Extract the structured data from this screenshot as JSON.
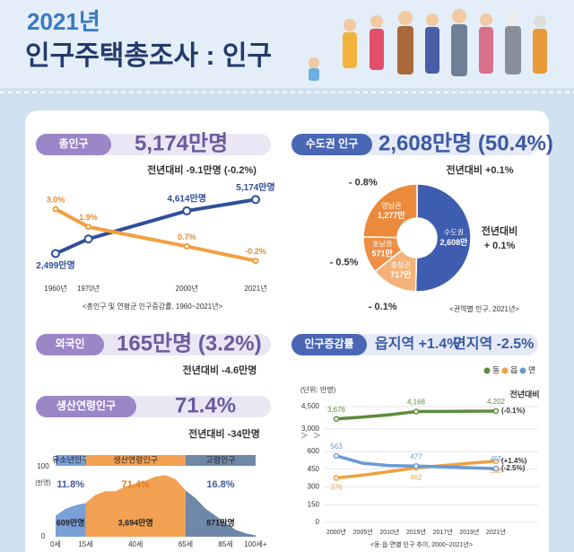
{
  "header": {
    "year": "2021년",
    "title": "인구주택총조사 : 인구"
  },
  "total": {
    "label": "총인구",
    "value": "5,174만명",
    "change": "전년대비 -9.1만명 (-0.2%)"
  },
  "capital": {
    "label": "수도권 인구",
    "value": "2,608만명 (50.4%)",
    "change": "전년대비 +0.1%"
  },
  "foreign": {
    "label": "외국인",
    "value": "165만명 (3.2%)",
    "change": "전년대비 -4.6만명"
  },
  "working_age": {
    "label": "생산연령인구",
    "value": "71.4%",
    "change": "전년대비 -34만명"
  },
  "urban_rural": {
    "label": "인구증감률",
    "items": [
      "읍지역 +1.4%",
      "면지역 -2.5%"
    ]
  },
  "chart_data": [
    {
      "type": "line",
      "caption": "<총인구 및 연평균 인구증감률, 1960~2021년>",
      "x": [
        1960,
        1970,
        2000,
        2021
      ],
      "xlim": [
        1960,
        2021
      ],
      "xticks": [
        {
          "value": 1960,
          "label": "1960년"
        },
        {
          "value": 1970,
          "label": "1970년"
        },
        {
          "value": 2000,
          "label": "2000년"
        },
        {
          "value": 2021,
          "label": "2021년"
        }
      ],
      "ylim": [
        1500,
        5500
      ],
      "y2lim": [
        -1,
        4
      ],
      "series": [
        {
          "color": "#2f4f9a",
          "values": [
            2499,
            3224,
            4614,
            5174
          ],
          "value_labels": [
            "2,499만명",
            null,
            "4,614만명",
            "5,174만명"
          ]
        },
        {
          "color": "#f0a040",
          "axis": "y2",
          "values": [
            3.0,
            1.9,
            0.7,
            -0.2
          ],
          "value_labels": [
            "3.0%",
            "1.9%",
            "0.7%",
            "-0.2%"
          ]
        }
      ]
    },
    {
      "type": "pie",
      "caption": "<권역별 인구, 2021년>",
      "categories": [
        "수도권",
        "충청권",
        "호남권",
        "영남권"
      ],
      "values": [
        2608,
        717,
        571,
        1277
      ],
      "value_labels": [
        "2,608만",
        "717만",
        "571만",
        "1,277만"
      ],
      "colors": [
        "#3f5db0",
        "#f4b27a",
        "#ee8f45",
        "#ec8a3c"
      ],
      "change_prefix": "전년대비",
      "changes": [
        "+ 0.1%",
        "- 0.1%",
        "- 0.5%",
        "- 0.8%"
      ]
    },
    {
      "type": "area",
      "y_unit": "(만명)",
      "x": [
        0,
        5,
        10,
        15,
        20,
        25,
        30,
        35,
        40,
        45,
        50,
        55,
        60,
        65,
        70,
        75,
        80,
        85,
        90,
        95,
        100
      ],
      "values": [
        30,
        40,
        45,
        48,
        60,
        65,
        65,
        72,
        76,
        80,
        86,
        88,
        82,
        66,
        55,
        40,
        30,
        20,
        10,
        5,
        2
      ],
      "xlim": [
        0,
        100
      ],
      "xticks": [
        {
          "value": 0,
          "label": "0세"
        },
        {
          "value": 15,
          "label": "15세"
        },
        {
          "value": 40,
          "label": "40세"
        },
        {
          "value": 65,
          "label": "65세"
        },
        {
          "value": 85,
          "label": "85세"
        },
        {
          "value": 100,
          "label": "100세+"
        }
      ],
      "ylim": [
        0,
        100
      ],
      "yticks": [
        0,
        100
      ],
      "group_edges": [
        0,
        15,
        65,
        100
      ],
      "groups": [
        {
          "name": "유소년인구",
          "share": "11.8%",
          "population": "609만명",
          "color": "#7aa0d8"
        },
        {
          "name": "생산연령인구",
          "share": "71.4%",
          "population": "3,694만명",
          "color": "#f2a052"
        },
        {
          "name": "고령인구",
          "share": "16.8%",
          "population": "871만명",
          "color": "#6f88a8"
        }
      ]
    },
    {
      "type": "line",
      "unit": "(단위: 만명)",
      "caption": "<동·읍·면별 인구 추이, 2000~2021년>",
      "legend": "top-right",
      "categories": [
        "2000년",
        "2005년",
        "2010년",
        "2015년",
        "2017년",
        "2019년",
        "2021년"
      ],
      "ylim": [
        0,
        600
      ],
      "yticks": [
        0,
        150,
        300,
        450,
        600
      ],
      "y2lim": [
        3000,
        4500
      ],
      "y2ticks": [
        {
          "value": 3000,
          "label": "3,000"
        },
        {
          "value": 4500,
          "label": "4,500"
        }
      ],
      "annotation": "전년대비",
      "series": [
        {
          "name": "동",
          "color": "#5e8c3c",
          "axis": "y2",
          "values": [
            3676,
            3800,
            3950,
            4168,
            4180,
            4195,
            4202
          ],
          "value_labels": [
            "3,676",
            null,
            null,
            "4,168",
            null,
            null,
            "4,202"
          ],
          "end_label": "(-0.1%)"
        },
        {
          "name": "읍",
          "color": "#f0a040",
          "values": [
            376,
            400,
            430,
            462,
            480,
            500,
            518
          ],
          "value_labels": [
            "376",
            null,
            null,
            "462",
            null,
            null,
            "518"
          ],
          "end_label": "(+1.4%)"
        },
        {
          "name": "면",
          "color": "#6a9ad6",
          "values": [
            563,
            500,
            480,
            477,
            470,
            462,
            455
          ],
          "value_labels": [
            "563",
            null,
            null,
            "477",
            null,
            null,
            "455"
          ],
          "end_label": "(-2.5%)"
        }
      ]
    }
  ]
}
